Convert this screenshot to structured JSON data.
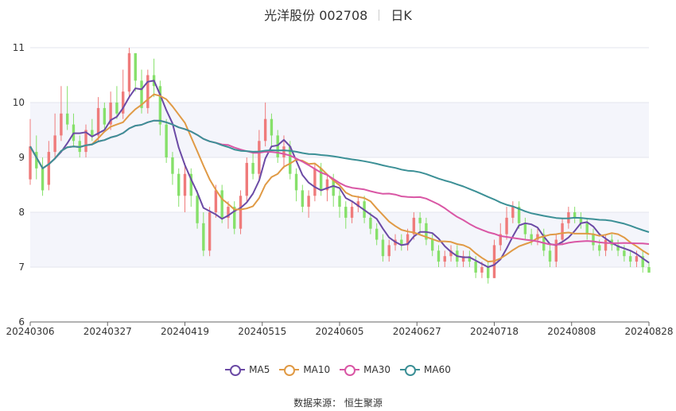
{
  "title": {
    "name": "光洋股份 002708",
    "period": "日K"
  },
  "source": "数据来源：  恒生聚源",
  "colors": {
    "up": "#ef7b7b",
    "down": "#86e06a",
    "MA5": "#6b4aa5",
    "MA10": "#e09a45",
    "MA30": "#d957a5",
    "MA60": "#3c9096"
  },
  "chart_data": {
    "type": "candlestick",
    "ylim": [
      6,
      11
    ],
    "yticks": [
      "6",
      "7",
      "8",
      "9",
      "10",
      "11"
    ],
    "xticks": [
      "20240306",
      "20240327",
      "20240419",
      "20240515",
      "20240605",
      "20240627",
      "20240718",
      "20240808",
      "20240828"
    ],
    "grid": true,
    "legend_position": "bottom",
    "legend": [
      "MA5",
      "MA10",
      "MA30",
      "MA60"
    ],
    "candles": [
      [
        8.6,
        9.2,
        9.7,
        8.5
      ],
      [
        9.1,
        8.8,
        9.4,
        8.6
      ],
      [
        8.8,
        8.4,
        9.0,
        8.3
      ],
      [
        8.5,
        9.1,
        9.3,
        8.4
      ],
      [
        9.1,
        9.4,
        9.8,
        9.0
      ],
      [
        9.4,
        9.8,
        10.3,
        9.3
      ],
      [
        9.8,
        9.6,
        10.3,
        9.5
      ],
      [
        9.6,
        9.3,
        9.8,
        9.2
      ],
      [
        9.3,
        9.1,
        9.4,
        9.0
      ],
      [
        9.1,
        9.5,
        9.6,
        9.0
      ],
      [
        9.5,
        9.4,
        9.7,
        9.3
      ],
      [
        9.4,
        9.9,
        10.1,
        9.3
      ],
      [
        9.9,
        9.6,
        10.0,
        9.5
      ],
      [
        9.6,
        10.0,
        10.2,
        9.5
      ],
      [
        10.0,
        9.8,
        10.3,
        9.7
      ],
      [
        9.8,
        10.2,
        10.6,
        9.7
      ],
      [
        10.2,
        10.9,
        11.0,
        10.1
      ],
      [
        10.9,
        10.4,
        10.9,
        10.2
      ],
      [
        10.4,
        9.9,
        10.6,
        9.8
      ],
      [
        9.9,
        10.5,
        10.6,
        9.8
      ],
      [
        10.5,
        10.3,
        10.8,
        10.1
      ],
      [
        10.3,
        9.6,
        10.4,
        9.4
      ],
      [
        9.6,
        9.0,
        9.7,
        8.9
      ],
      [
        9.0,
        8.7,
        9.1,
        8.5
      ],
      [
        8.7,
        8.3,
        8.8,
        8.1
      ],
      [
        8.3,
        8.7,
        8.9,
        8.0
      ],
      [
        8.7,
        8.3,
        8.8,
        8.1
      ],
      [
        8.3,
        7.8,
        8.4,
        7.7
      ],
      [
        7.8,
        7.3,
        8.0,
        7.2
      ],
      [
        7.3,
        8.0,
        8.1,
        7.2
      ],
      [
        8.0,
        8.4,
        8.5,
        7.9
      ],
      [
        8.4,
        7.9,
        8.5,
        7.8
      ],
      [
        7.9,
        8.1,
        8.2,
        7.7
      ],
      [
        8.1,
        7.7,
        8.2,
        7.6
      ],
      [
        7.7,
        8.3,
        8.4,
        7.6
      ],
      [
        8.3,
        8.9,
        9.0,
        8.2
      ],
      [
        8.9,
        8.7,
        9.1,
        8.6
      ],
      [
        8.7,
        9.3,
        9.5,
        8.6
      ],
      [
        9.3,
        9.7,
        10.0,
        9.2
      ],
      [
        9.7,
        9.4,
        9.8,
        9.2
      ],
      [
        9.4,
        9.0,
        9.5,
        8.9
      ],
      [
        9.0,
        9.2,
        9.4,
        8.8
      ],
      [
        9.2,
        8.7,
        9.3,
        8.6
      ],
      [
        8.7,
        8.4,
        8.8,
        8.2
      ],
      [
        8.4,
        8.1,
        8.5,
        8.0
      ],
      [
        8.1,
        8.3,
        8.4,
        7.9
      ],
      [
        8.3,
        8.8,
        8.9,
        8.2
      ],
      [
        8.8,
        8.4,
        8.9,
        8.3
      ],
      [
        8.4,
        8.6,
        8.7,
        8.2
      ],
      [
        8.6,
        8.3,
        8.7,
        8.1
      ],
      [
        8.3,
        8.1,
        8.4,
        7.9
      ],
      [
        8.1,
        7.9,
        8.2,
        7.7
      ],
      [
        7.9,
        8.1,
        8.2,
        7.8
      ],
      [
        8.1,
        8.2,
        8.3,
        8.0
      ],
      [
        8.2,
        7.9,
        8.3,
        7.8
      ],
      [
        7.9,
        7.7,
        8.0,
        7.6
      ],
      [
        7.7,
        7.5,
        7.8,
        7.4
      ],
      [
        7.5,
        7.2,
        7.6,
        7.1
      ],
      [
        7.2,
        7.4,
        7.5,
        7.1
      ],
      [
        7.4,
        7.5,
        7.6,
        7.3
      ],
      [
        7.5,
        7.4,
        7.6,
        7.3
      ],
      [
        7.4,
        7.6,
        7.7,
        7.3
      ],
      [
        7.6,
        7.9,
        8.0,
        7.5
      ],
      [
        7.9,
        7.8,
        8.0,
        7.6
      ],
      [
        7.8,
        7.5,
        7.9,
        7.4
      ],
      [
        7.5,
        7.3,
        7.6,
        7.2
      ],
      [
        7.3,
        7.1,
        7.4,
        7.0
      ],
      [
        7.1,
        7.2,
        7.3,
        7.0
      ],
      [
        7.2,
        7.3,
        7.4,
        7.1
      ],
      [
        7.3,
        7.1,
        7.4,
        7.0
      ],
      [
        7.1,
        7.2,
        7.3,
        7.0
      ],
      [
        7.2,
        7.1,
        7.3,
        7.0
      ],
      [
        7.1,
        6.9,
        7.2,
        6.8
      ],
      [
        6.9,
        7.0,
        7.1,
        6.8
      ],
      [
        7.0,
        6.8,
        7.1,
        6.7
      ],
      [
        6.8,
        7.4,
        7.5,
        6.8
      ],
      [
        7.4,
        7.6,
        7.8,
        7.3
      ],
      [
        7.6,
        7.9,
        8.1,
        7.5
      ],
      [
        7.9,
        8.1,
        8.2,
        7.8
      ],
      [
        8.1,
        7.8,
        8.2,
        7.7
      ],
      [
        7.8,
        7.6,
        7.9,
        7.5
      ],
      [
        7.6,
        7.5,
        7.7,
        7.4
      ],
      [
        7.5,
        7.6,
        7.7,
        7.4
      ],
      [
        7.6,
        7.3,
        7.7,
        7.2
      ],
      [
        7.3,
        7.1,
        7.4,
        7.0
      ],
      [
        7.1,
        7.5,
        7.6,
        7.0
      ],
      [
        7.5,
        7.8,
        7.9,
        7.4
      ],
      [
        7.8,
        8.0,
        8.1,
        7.7
      ],
      [
        8.0,
        7.9,
        8.1,
        7.8
      ],
      [
        7.9,
        7.8,
        8.0,
        7.7
      ],
      [
        7.8,
        7.6,
        7.9,
        7.5
      ],
      [
        7.6,
        7.4,
        7.7,
        7.3
      ],
      [
        7.4,
        7.3,
        7.5,
        7.2
      ],
      [
        7.3,
        7.5,
        7.6,
        7.2
      ],
      [
        7.5,
        7.4,
        7.6,
        7.3
      ],
      [
        7.4,
        7.3,
        7.5,
        7.2
      ],
      [
        7.3,
        7.2,
        7.4,
        7.1
      ],
      [
        7.2,
        7.1,
        7.3,
        7.0
      ],
      [
        7.1,
        7.2,
        7.3,
        7.0
      ],
      [
        7.2,
        7.0,
        7.3,
        6.9
      ],
      [
        7.0,
        6.9,
        7.1,
        6.9
      ]
    ]
  }
}
